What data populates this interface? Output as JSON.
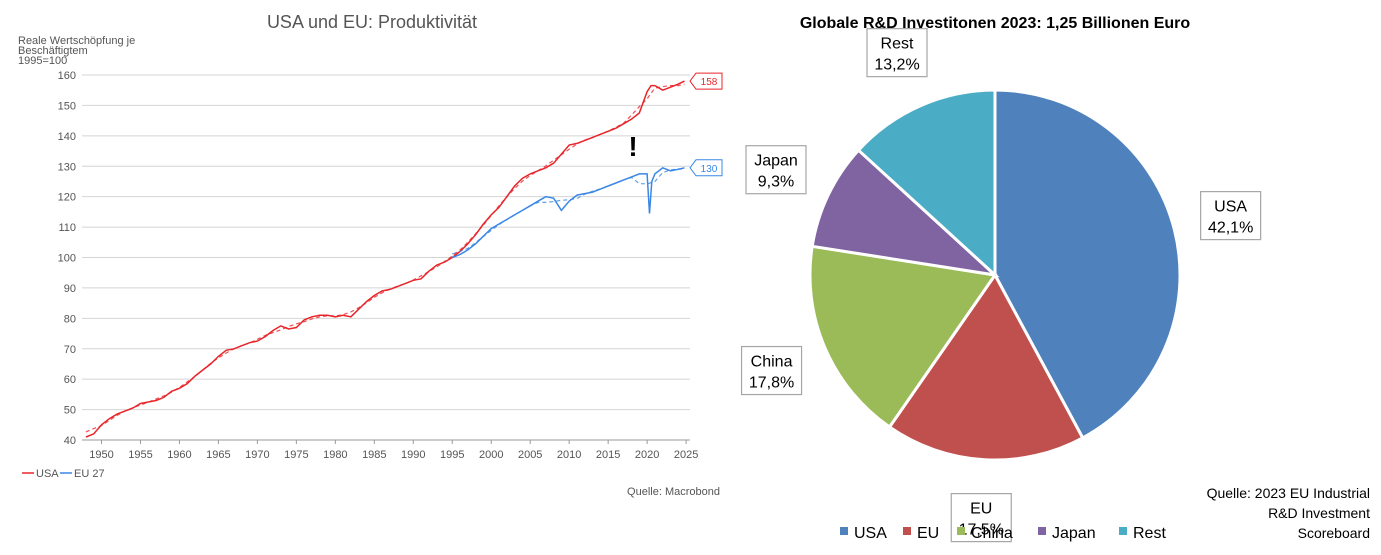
{
  "chart_data": [
    {
      "type": "line",
      "title": "USA und EU: Produktivität",
      "ylabel_lines": [
        "Reale Wertschöpfung je",
        "Beschäftigtem",
        "1995=100"
      ],
      "xlabel": "",
      "xlim": [
        1947.5,
        2025.5
      ],
      "ylim": [
        40,
        160
      ],
      "yticks": [
        40,
        50,
        60,
        70,
        80,
        90,
        100,
        110,
        120,
        130,
        140,
        150,
        160
      ],
      "xticks": [
        1950,
        1955,
        1960,
        1965,
        1970,
        1975,
        1980,
        1985,
        1990,
        1995,
        2000,
        2005,
        2010,
        2015,
        2020,
        2025
      ],
      "grid": true,
      "legend_position": "bottom-left",
      "annotation": "!",
      "source": "Quelle: Macrobond",
      "series": [
        {
          "name": "USA",
          "color": "#e8252a",
          "end_label": "158",
          "x": [
            1948,
            1949,
            1950,
            1951,
            1952,
            1953,
            1954,
            1955,
            1956,
            1957,
            1958,
            1959,
            1960,
            1961,
            1962,
            1963,
            1964,
            1965,
            1966,
            1967,
            1968,
            1969,
            1970,
            1971,
            1972,
            1973,
            1974,
            1975,
            1976,
            1977,
            1978,
            1979,
            1980,
            1981,
            1982,
            1983,
            1984,
            1985,
            1986,
            1987,
            1988,
            1989,
            1990,
            1991,
            1992,
            1993,
            1994,
            1995,
            1996,
            1997,
            1998,
            1999,
            2000,
            2001,
            2002,
            2003,
            2004,
            2005,
            2006,
            2007,
            2008,
            2009,
            2010,
            2011,
            2012,
            2013,
            2014,
            2015,
            2016,
            2017,
            2018,
            2019,
            2020,
            2020.5,
            2021,
            2022,
            2023,
            2024,
            2024.8
          ],
          "values": [
            41,
            42,
            45,
            47,
            48.5,
            49.5,
            50.5,
            52,
            52.5,
            53,
            54,
            56,
            57,
            58.5,
            61,
            63,
            65,
            67.5,
            69.5,
            70,
            71,
            72,
            72.5,
            74,
            76,
            77.5,
            76.5,
            77,
            79.5,
            80.5,
            81,
            81,
            80.5,
            81,
            80.5,
            83,
            85.5,
            87.5,
            89,
            89.5,
            90.5,
            91.5,
            92.5,
            93,
            95.5,
            97.5,
            98.5,
            100,
            102,
            104.5,
            107.5,
            111,
            114,
            116.5,
            120,
            123.5,
            126,
            127.5,
            128.5,
            129.5,
            131,
            134,
            137,
            137.5,
            138.5,
            139.5,
            140.5,
            141.5,
            142.5,
            144,
            145.5,
            147.5,
            154.5,
            156.5,
            156.5,
            155,
            156,
            157,
            158
          ]
        },
        {
          "name": "EU 27",
          "color": "#3a87e6",
          "end_label": "130",
          "x": [
            1995,
            1996,
            1997,
            1998,
            1999,
            2000,
            2001,
            2002,
            2003,
            2004,
            2005,
            2006,
            2007,
            2008,
            2009,
            2010,
            2011,
            2012,
            2013,
            2014,
            2015,
            2016,
            2017,
            2018,
            2019,
            2020,
            2020.3,
            2020.6,
            2021,
            2022,
            2023,
            2024,
            2024.8
          ],
          "values": [
            100,
            101,
            102.5,
            104.5,
            107,
            109.5,
            111,
            112.5,
            114,
            115.5,
            117,
            118.5,
            120,
            119.5,
            115.5,
            118.5,
            120.5,
            121,
            121.5,
            122.5,
            123.5,
            124.5,
            125.5,
            126.5,
            127.5,
            127.5,
            114.5,
            125,
            127.5,
            129.5,
            128.5,
            129,
            129.5
          ]
        }
      ]
    },
    {
      "type": "pie",
      "title": "Globale R&D Investitonen 2023: 1,25 Billionen Euro",
      "legend_position": "bottom",
      "source_lines": [
        "Quelle: 2023 EU Industrial",
        "R&D Investment",
        "Scoreboard"
      ],
      "slices": [
        {
          "name": "USA",
          "value": 42.1,
          "value_label": "42,1%",
          "color": "#4f81bd"
        },
        {
          "name": "EU",
          "value": 17.5,
          "value_label": "17,5%",
          "color": "#c0504d"
        },
        {
          "name": "China",
          "value": 17.8,
          "value_label": "17,8%",
          "color": "#9bbb59"
        },
        {
          "name": "Japan",
          "value": 9.3,
          "value_label": "9,3%",
          "color": "#8064a2"
        },
        {
          "name": "Rest",
          "value": 13.2,
          "value_label": "13,2%",
          "color": "#4bacc6"
        }
      ]
    }
  ]
}
